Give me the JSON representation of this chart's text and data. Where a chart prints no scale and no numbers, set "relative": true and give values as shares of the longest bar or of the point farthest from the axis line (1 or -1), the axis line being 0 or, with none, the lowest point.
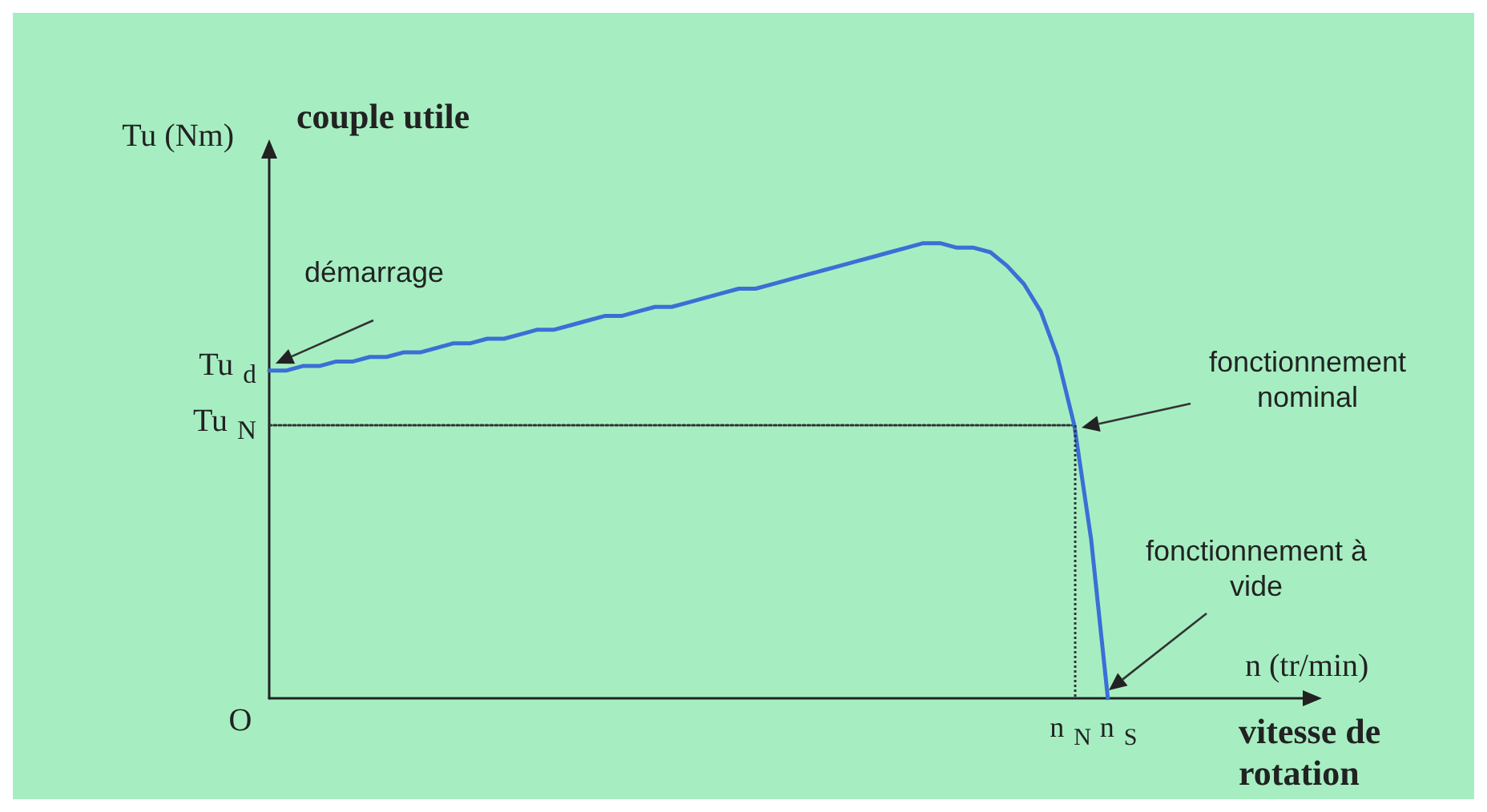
{
  "chart_data": {
    "type": "line",
    "relative": true,
    "ylabel": "Tu (Nm)",
    "xlabel": "n (tr/min)",
    "grid": false,
    "marker": "none",
    "categories": [
      null,
      null,
      null,
      null,
      null,
      null,
      null,
      null,
      null,
      null,
      null,
      null,
      null,
      null,
      null,
      null,
      null,
      null,
      null,
      null,
      null,
      null,
      null,
      null,
      null,
      null,
      null,
      null,
      null,
      null,
      null,
      null,
      null,
      null,
      null,
      null,
      null,
      null,
      null,
      null,
      null,
      null,
      null,
      null,
      null,
      null,
      null,
      null,
      null,
      null,
      null,
      null,
      null,
      null,
      null,
      null,
      null,
      null,
      null,
      null,
      null,
      null,
      null
    ],
    "series": [
      {
        "color": "#3b6fd6",
        "line_style": "solid",
        "values": [
          0.72,
          0.72,
          0.73,
          0.73,
          0.74,
          0.74,
          0.75,
          0.75,
          0.76,
          0.76,
          0.77,
          0.78,
          0.78,
          0.79,
          0.79,
          0.8,
          0.81,
          0.81,
          0.82,
          0.83,
          0.84,
          0.84,
          0.85,
          0.86,
          0.86,
          0.87,
          0.88,
          0.89,
          0.9,
          0.9,
          0.91,
          0.92,
          0.93,
          0.94,
          0.95,
          0.96,
          0.97,
          0.98,
          0.99,
          1,
          1,
          0.99,
          0.99,
          0.98,
          0.95,
          0.91,
          0.85,
          0.75,
          0.6,
          0.35,
          0,
          null,
          null,
          null,
          null,
          null,
          null,
          null,
          null,
          null,
          null,
          null,
          null
        ]
      },
      {
        "color": "#333333",
        "line_style": "dotted",
        "values": [
          0.6,
          0.6,
          0.6,
          0.6,
          0.6,
          0.6,
          0.6,
          0.6,
          0.6,
          0.6,
          0.6,
          0.6,
          0.6,
          0.6,
          0.6,
          0.6,
          0.6,
          0.6,
          0.6,
          0.6,
          0.6,
          0.6,
          0.6,
          0.6,
          0.6,
          0.6,
          0.6,
          0.6,
          0.6,
          0.6,
          0.6,
          0.6,
          0.6,
          0.6,
          0.6,
          0.6,
          0.6,
          0.6,
          0.6,
          0.6,
          0.6,
          0.6,
          0.6,
          0.6,
          0.6,
          0.6,
          0.6,
          0.6,
          0.6,
          null,
          null,
          null,
          null,
          null,
          null,
          null,
          null,
          null,
          null,
          null,
          null,
          null,
          null
        ]
      }
    ],
    "annotations": [
      "couple utile",
      "vitesse de rotation",
      "O",
      "Tu$_{d}$",
      "Tu$_{N}$",
      "n$_{N}$",
      "n$_{S}$",
      "démarrage",
      "fonctionnement nominal",
      "fonctionnement à vide"
    ]
  }
}
